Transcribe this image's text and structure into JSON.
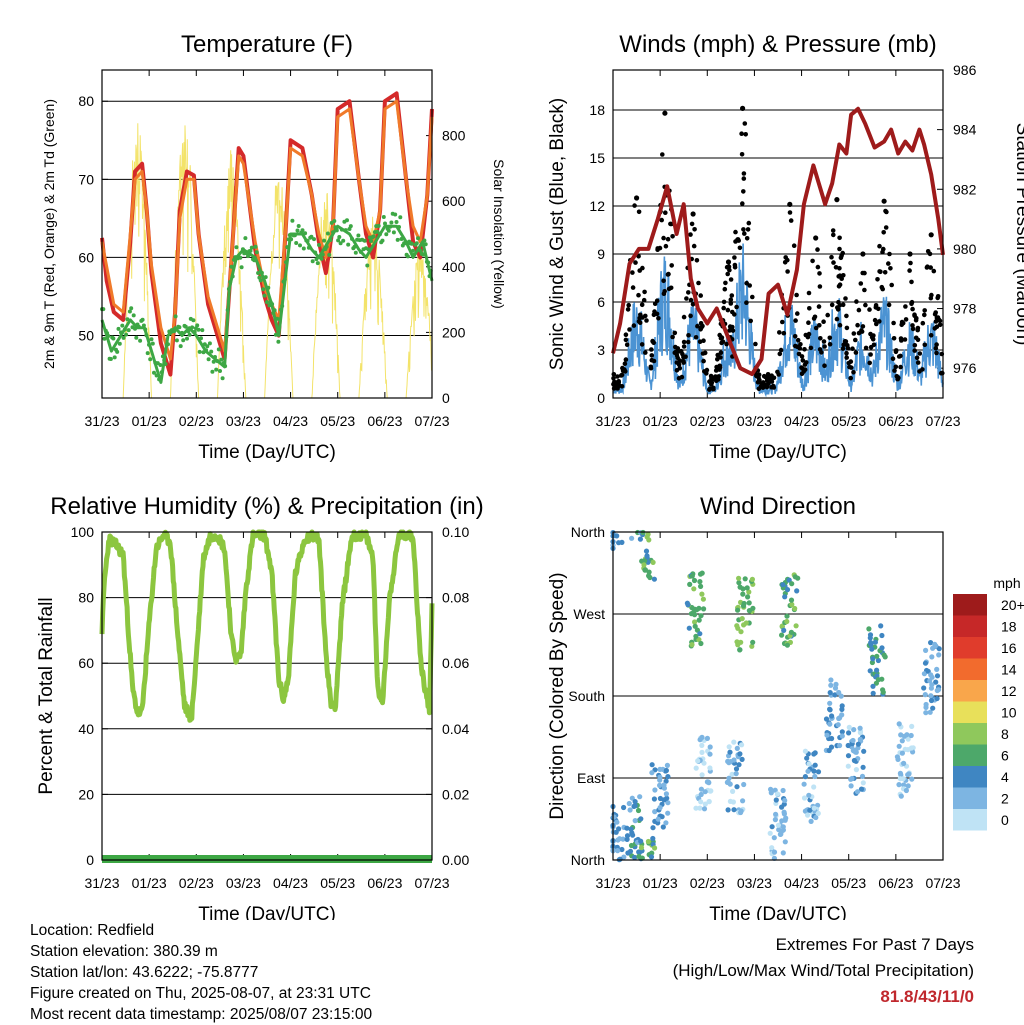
{
  "chart_data": [
    {
      "id": "temperature",
      "type": "line",
      "title": "Temperature (F)",
      "xlabel": "Time (Day/UTC)",
      "ylabel": "2m & 9m T (Red, Orange) & 2m Td (Green)",
      "y2label": "Solar Insolation (Yellow)",
      "x_ticks": [
        "31/23",
        "01/23",
        "02/23",
        "03/23",
        "04/23",
        "05/23",
        "06/23",
        "07/23"
      ],
      "x_range_days": [
        0,
        7
      ],
      "ylim": [
        42,
        84
      ],
      "y_ticks": [
        50,
        60,
        70,
        80
      ],
      "y2lim": [
        0,
        1000
      ],
      "y2_ticks": [
        0,
        200,
        400,
        600,
        800
      ],
      "grid": "horizontal",
      "series": [
        {
          "name": "2m T",
          "color": "#d42a2a",
          "axis": "left",
          "x": [
            0,
            0.1,
            0.25,
            0.45,
            0.6,
            0.7,
            0.85,
            0.95,
            1.05,
            1.25,
            1.45,
            1.55,
            1.65,
            1.8,
            1.95,
            2.05,
            2.25,
            2.45,
            2.6,
            2.75,
            2.9,
            3.0,
            3.25,
            3.45,
            3.6,
            3.75,
            3.9,
            4.0,
            4.25,
            4.45,
            4.6,
            4.75,
            4.9,
            5.0,
            5.25,
            5.45,
            5.6,
            5.75,
            5.9,
            6.0,
            6.25,
            6.45,
            6.6,
            6.75,
            6.9,
            7.0
          ],
          "y": [
            62.5,
            57,
            53,
            52,
            62,
            71,
            72,
            66,
            58,
            49,
            45,
            53,
            66,
            71,
            70.5,
            63,
            54,
            50,
            47,
            60,
            74,
            73,
            61,
            55,
            52,
            50,
            64,
            75,
            74,
            68,
            62,
            58,
            64,
            79,
            80,
            70,
            63,
            60,
            66,
            80,
            81,
            70,
            62,
            60,
            68,
            79
          ]
        },
        {
          "name": "9m T",
          "color": "#f07a2a",
          "axis": "left",
          "x": [
            0,
            0.25,
            0.45,
            0.6,
            0.7,
            0.85,
            0.95,
            1.05,
            1.25,
            1.45,
            1.55,
            1.65,
            1.8,
            1.95,
            2.05,
            2.25,
            2.45,
            2.6,
            2.75,
            2.9,
            3.0,
            3.25,
            3.45,
            3.6,
            3.75,
            3.9,
            4.0,
            4.25,
            4.45,
            4.6,
            4.75,
            4.9,
            5.0,
            5.25,
            5.45,
            5.6,
            5.75,
            5.9,
            6.0,
            6.25,
            6.45,
            6.6,
            6.75,
            6.9,
            7.0
          ],
          "y": [
            62,
            54,
            53,
            63,
            70,
            71,
            66,
            59,
            51,
            47,
            53,
            65,
            70,
            70,
            63,
            55,
            51,
            48,
            60,
            73,
            72,
            62,
            56,
            54,
            52,
            64,
            74,
            73,
            68,
            63,
            60,
            64,
            78,
            79,
            70,
            64,
            62,
            66,
            79,
            80,
            70,
            64,
            62,
            68,
            78
          ]
        },
        {
          "name": "2m Td",
          "color": "#3da744",
          "axis": "left",
          "x": [
            0,
            0.2,
            0.4,
            0.6,
            0.75,
            0.9,
            1.05,
            1.25,
            1.4,
            1.55,
            1.7,
            1.85,
            2.0,
            2.2,
            2.4,
            2.6,
            2.7,
            2.85,
            3.0,
            3.25,
            3.45,
            3.6,
            3.75,
            3.9,
            4.0,
            4.25,
            4.45,
            4.6,
            4.8,
            5.0,
            5.25,
            5.45,
            5.6,
            5.8,
            6.0,
            6.25,
            6.45,
            6.6,
            6.8,
            7.0
          ],
          "y": [
            52,
            48,
            50,
            52,
            51,
            51,
            48,
            44,
            50,
            51,
            50,
            51,
            50,
            48,
            47,
            46,
            56,
            60,
            61,
            60,
            57,
            54,
            50,
            58,
            63,
            63,
            61,
            60,
            62,
            64,
            63,
            61,
            60,
            62,
            64,
            64,
            62,
            60,
            62,
            57
          ]
        }
      ],
      "y2_series": {
        "name": "Solar Insolation",
        "color": "#f3e36a",
        "days": 7,
        "peaks": [
          850,
          880,
          760,
          700,
          640,
          560,
          470
        ]
      }
    },
    {
      "id": "winds",
      "type": "scatter",
      "title": "Winds (mph) & Pressure (mb)",
      "xlabel": "Time (Day/UTC)",
      "ylabel": "Sonic Wind & Gust (Blue, Black)",
      "y2label": "Station Pressure (Maroon)",
      "x_ticks": [
        "31/23",
        "01/23",
        "02/23",
        "03/23",
        "04/23",
        "05/23",
        "06/23",
        "07/23"
      ],
      "ylim": [
        0,
        20.5
      ],
      "y_ticks": [
        0,
        3,
        6,
        9,
        12,
        15,
        18
      ],
      "y2lim": [
        975,
        986
      ],
      "y2_ticks": [
        976,
        978,
        980,
        982,
        984,
        986
      ],
      "grid": "horizontal",
      "gust_peaks": [
        {
          "x": 0.5,
          "y": 12.5
        },
        {
          "x": 1.1,
          "y": 17.8
        },
        {
          "x": 1.7,
          "y": 11.5
        },
        {
          "x": 2.45,
          "y": 8.5
        },
        {
          "x": 2.75,
          "y": 18.1
        },
        {
          "x": 3.75,
          "y": 12.1
        },
        {
          "x": 4.3,
          "y": 10
        },
        {
          "x": 4.75,
          "y": 12.4
        },
        {
          "x": 5.3,
          "y": 9
        },
        {
          "x": 5.75,
          "y": 12.3
        },
        {
          "x": 6.3,
          "y": 9
        },
        {
          "x": 6.75,
          "y": 10.2
        }
      ],
      "series": [
        {
          "name": "Station Pressure",
          "color": "#9e1b1b",
          "axis": "right",
          "x": [
            0,
            0.15,
            0.35,
            0.55,
            0.75,
            0.95,
            1.15,
            1.35,
            1.5,
            1.65,
            1.8,
            2.0,
            2.2,
            2.45,
            2.7,
            2.95,
            3.15,
            3.3,
            3.5,
            3.7,
            3.9,
            4.05,
            4.25,
            4.5,
            4.65,
            4.8,
            4.95,
            5.05,
            5.2,
            5.35,
            5.55,
            5.75,
            5.9,
            6.05,
            6.2,
            6.35,
            6.5,
            6.6,
            6.75,
            6.9,
            7.0
          ],
          "y": [
            976.5,
            977.5,
            979.5,
            980,
            980,
            981,
            982.1,
            980.5,
            981.5,
            979,
            978,
            977.5,
            978,
            977,
            976,
            975.8,
            976.3,
            978.5,
            978.8,
            977.8,
            979.3,
            981.5,
            982.8,
            981.5,
            982.2,
            983.5,
            983.2,
            984.5,
            984.7,
            984.2,
            983.4,
            983.6,
            984,
            983.2,
            983.6,
            983.3,
            984,
            983.5,
            982.5,
            981,
            979.8
          ]
        }
      ]
    },
    {
      "id": "humidity",
      "type": "line",
      "title": "Relative Humidity (%) & Precipitation (in)",
      "xlabel": "Time (Day/UTC)",
      "ylabel": "Percent & Total Rainfall",
      "x_ticks": [
        "31/23",
        "01/23",
        "02/23",
        "03/23",
        "04/23",
        "05/23",
        "06/23",
        "07/23"
      ],
      "ylim": [
        0,
        100
      ],
      "y_ticks": [
        0,
        20,
        40,
        60,
        80,
        100
      ],
      "y2lim": [
        0,
        0.1
      ],
      "y2_ticks": [
        "0.00",
        "0.02",
        "0.04",
        "0.06",
        "0.08",
        "0.10"
      ],
      "grid": "horizontal",
      "series": [
        {
          "name": "Relative Humidity",
          "color": "#8cc63f",
          "axis": "left",
          "x": [
            0,
            0.05,
            0.15,
            0.3,
            0.45,
            0.55,
            0.65,
            0.75,
            0.85,
            1.0,
            1.15,
            1.3,
            1.45,
            1.6,
            1.75,
            1.9,
            2.0,
            2.15,
            2.3,
            2.45,
            2.6,
            2.75,
            2.85,
            2.95,
            3.05,
            3.2,
            3.3,
            3.45,
            3.6,
            3.75,
            3.85,
            3.95,
            4.1,
            4.3,
            4.45,
            4.6,
            4.75,
            4.85,
            4.95,
            5.1,
            5.3,
            5.45,
            5.6,
            5.75,
            5.85,
            5.95,
            6.1,
            6.3,
            6.45,
            6.6,
            6.75,
            6.85,
            6.95,
            7.0
          ],
          "y": [
            70,
            85,
            98,
            96,
            93,
            72,
            52,
            45,
            45,
            72,
            95,
            99,
            97,
            70,
            47,
            43,
            62,
            92,
            99,
            99,
            95,
            67,
            61,
            63,
            82,
            99,
            99,
            99,
            88,
            55,
            49,
            55,
            87,
            98,
            99,
            98,
            63,
            48,
            47,
            78,
            99,
            99,
            99,
            92,
            52,
            48,
            80,
            99,
            99,
            99,
            62,
            52,
            46,
            78
          ]
        },
        {
          "name": "Total Rainfall",
          "color": "#3da744",
          "axis": "right",
          "x": [
            0,
            7
          ],
          "y": [
            0,
            0
          ]
        }
      ]
    },
    {
      "id": "wind_direction",
      "type": "scatter",
      "title": "Wind Direction",
      "xlabel": "Time (Day/UTC)",
      "ylabel": "Direction (Colored By Speed)",
      "x_ticks": [
        "31/23",
        "01/23",
        "02/23",
        "03/23",
        "04/23",
        "05/23",
        "06/23",
        "07/23"
      ],
      "ylim": [
        0,
        360
      ],
      "y_ticks": [
        "North",
        "East",
        "South",
        "West",
        "North"
      ],
      "grid": "horizontal",
      "legend": {
        "title": "mph",
        "placement": "right",
        "labels": [
          "20+",
          "18",
          "16",
          "14",
          "12",
          "10",
          "8",
          "6",
          "4",
          "2",
          "0"
        ],
        "colors": [
          "#9e1b1b",
          "#c62828",
          "#e03c2c",
          "#f26b2d",
          "#f9a64b",
          "#e8e05a",
          "#8fc85c",
          "#4da86a",
          "#3f86c2",
          "#7db5e2",
          "#bfe3f5"
        ]
      },
      "clusters": [
        {
          "x": 0.08,
          "y": 20,
          "speed": 3
        },
        {
          "x": 0.45,
          "y": 30,
          "speed": 4
        },
        {
          "x": 0.75,
          "y": 345,
          "speed": 6
        },
        {
          "x": 1.0,
          "y": 70,
          "speed": 3
        },
        {
          "x": 1.75,
          "y": 275,
          "speed": 6
        },
        {
          "x": 1.9,
          "y": 95,
          "speed": 1
        },
        {
          "x": 2.6,
          "y": 90,
          "speed": 2
        },
        {
          "x": 2.8,
          "y": 270,
          "speed": 7
        },
        {
          "x": 3.5,
          "y": 40,
          "speed": 2
        },
        {
          "x": 3.75,
          "y": 275,
          "speed": 6
        },
        {
          "x": 4.2,
          "y": 80,
          "speed": 2
        },
        {
          "x": 4.7,
          "y": 160,
          "speed": 3
        },
        {
          "x": 5.15,
          "y": 110,
          "speed": 2
        },
        {
          "x": 5.6,
          "y": 220,
          "speed": 5
        },
        {
          "x": 6.2,
          "y": 110,
          "speed": 1
        },
        {
          "x": 6.75,
          "y": 200,
          "speed": 3
        }
      ]
    }
  ],
  "info": {
    "location": "Location: Redfield",
    "elevation": "Station elevation: 380.39 m",
    "latlon": "Station lat/lon: 43.6222; -75.8777",
    "created": "Figure created on Thu, 2025-08-07, at 23:31 UTC",
    "recent": "Most recent data timestamp: 2025/08/07 23:15:00"
  },
  "extremes": {
    "title": "Extremes For Past 7 Days",
    "subtitle": "(High/Low/Max Wind/Total Precipitation)",
    "values": "81.8/43/11/0",
    "value_color": "#c0282d"
  }
}
